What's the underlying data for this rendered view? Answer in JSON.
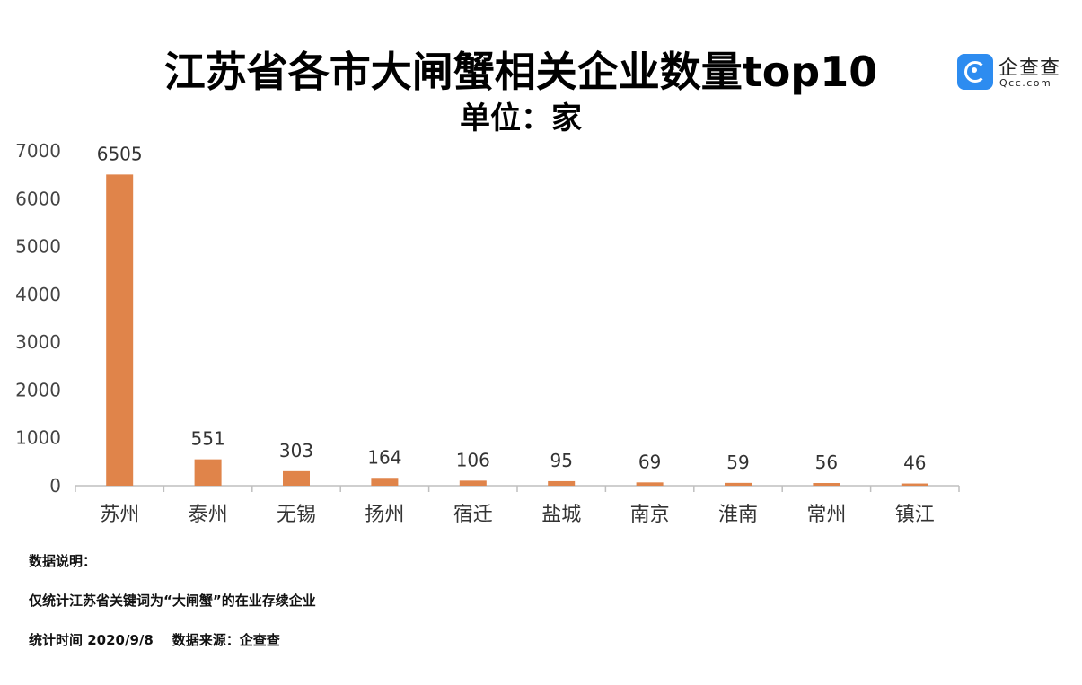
{
  "header": {
    "title": "江苏省各市大闸蟹相关企业数量top10",
    "subtitle": "单位：家"
  },
  "logo": {
    "name": "企查查",
    "url": "Qcc.com",
    "icon": "qcc-logo-icon",
    "color": "#2d8cf0"
  },
  "chart_data": {
    "type": "bar",
    "categories": [
      "苏州",
      "泰州",
      "无锡",
      "扬州",
      "宿迁",
      "盐城",
      "南京",
      "淮南",
      "常州",
      "镇江"
    ],
    "values": [
      6505,
      551,
      303,
      164,
      106,
      95,
      69,
      59,
      56,
      46
    ],
    "data_labels": [
      "6505",
      "551",
      "303",
      "164",
      "106",
      "95",
      "69",
      "59",
      "56",
      "46"
    ],
    "y_ticks": [
      0,
      1000,
      2000,
      3000,
      4000,
      5000,
      6000,
      7000
    ],
    "ylim": [
      0,
      7000
    ],
    "bar_color": "#e0844a",
    "grid": false,
    "legend": "none"
  },
  "notes": {
    "heading": "数据说明：",
    "line1": "仅统计江苏省关键词为“大闸蟹”的在业存续企业",
    "line2": "统计时间 2020/9/8    数据来源：企查查"
  }
}
